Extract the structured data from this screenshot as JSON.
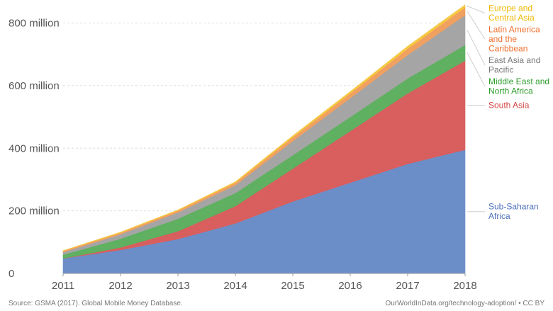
{
  "chart_data": {
    "type": "area",
    "stacked": true,
    "title": "",
    "xlabel": "",
    "ylabel": "",
    "x": [
      2011,
      2012,
      2013,
      2014,
      2015,
      2016,
      2017,
      2018
    ],
    "x_labels": [
      "2011",
      "2012",
      "2013",
      "2014",
      "2015",
      "2016",
      "2017",
      "2018"
    ],
    "ylim": [
      0,
      860
    ],
    "y_ticks": [
      {
        "value": 0,
        "label": "0"
      },
      {
        "value": 200,
        "label": "200 million"
      },
      {
        "value": 400,
        "label": "400 million"
      },
      {
        "value": 600,
        "label": "600 million"
      },
      {
        "value": 800,
        "label": "800 million"
      }
    ],
    "series": [
      {
        "name": "Sub-Saharan Africa",
        "label_lines": [
          "Sub-Saharan",
          "Africa"
        ],
        "color": "#6c8ec8",
        "values": [
          48,
          75,
          110,
          160,
          230,
          290,
          350,
          395
        ]
      },
      {
        "name": "South Asia",
        "label_lines": [
          "South Asia"
        ],
        "color": "#d95e5e",
        "values": [
          0,
          8,
          25,
          55,
          105,
          165,
          225,
          285
        ]
      },
      {
        "name": "Middle East and North Africa",
        "label_lines": [
          "Middle East and",
          "North Africa"
        ],
        "color": "#5fb060",
        "values": [
          12,
          28,
          40,
          42,
          43,
          45,
          48,
          50
        ]
      },
      {
        "name": "East Asia and Pacific",
        "label_lines": [
          "East Asia and",
          "Pacific"
        ],
        "color": "#a5a5a5",
        "values": [
          8,
          14,
          20,
          25,
          45,
          60,
          75,
          95
        ]
      },
      {
        "name": "Latin America and the Caribbean",
        "label_lines": [
          "Latin America",
          "and the",
          "Caribbean"
        ],
        "color": "#f0a060",
        "values": [
          4,
          5,
          6,
          8,
          12,
          15,
          20,
          25
        ]
      },
      {
        "name": "Europe and Central Asia",
        "label_lines": [
          "Europe and",
          "Central Asia"
        ],
        "color": "#f5c842",
        "values": [
          1,
          2,
          2,
          3,
          5,
          6,
          8,
          8
        ]
      }
    ]
  },
  "legend_colors": {
    "Sub-Saharan Africa": "#4a70b8",
    "South Asia": "#d64545",
    "Middle East and North Africa": "#2e9e2e",
    "East Asia and Pacific": "#777777",
    "Latin America and the Caribbean": "#f07030",
    "Europe and Central Asia": "#f0b800"
  },
  "footer": {
    "source": "Source: GSMA (2017). Global Mobile Money Database.",
    "credit": "OurWorldInData.org/technology-adoption/ • CC BY"
  }
}
